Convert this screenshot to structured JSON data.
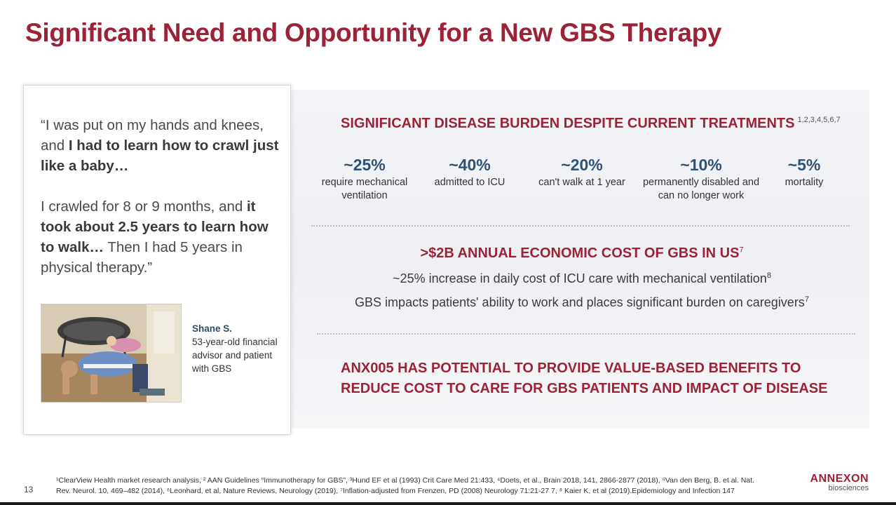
{
  "title": "Significant Need and Opportunity for a New GBS Therapy",
  "quote": {
    "part1_plain": "“I was put on my hands and knees, and ",
    "part1_bold": "I had to learn how to crawl just like a baby…",
    "part2_plain": "I crawled for 8 or 9 months, and ",
    "part2_bold": "it took about 2.5 years to learn how to walk…",
    "part2_end": " Then I had 5 years in physical therapy.”"
  },
  "patient": {
    "name": "Shane S.",
    "description": "53-year-old financial advisor and patient with GBS"
  },
  "burden": {
    "heading": "SIGNIFICANT DISEASE BURDEN DESPITE CURRENT TREATMENTS",
    "refs": "1,2,3,4,5,6,7",
    "stats": [
      {
        "value": "~25%",
        "label": "require mechanical ventilation"
      },
      {
        "value": "~40%",
        "label": "admitted to ICU"
      },
      {
        "value": "~20%",
        "label": "can't walk at 1 year"
      },
      {
        "value": "~10%",
        "label": "permanently disabled and can no longer work"
      },
      {
        "value": "~5%",
        "label": "mortality"
      }
    ]
  },
  "economic": {
    "heading": ">$2B ANNUAL ECONOMIC COST OF GBS IN US",
    "heading_ref": "7",
    "line1": "~25% increase in daily cost of ICU care with mechanical ventilation",
    "line1_ref": "8",
    "line2": "GBS impacts patients' ability to work and places significant burden on caregivers",
    "line2_ref": "7"
  },
  "potential": {
    "line1": "ANX005 HAS POTENTIAL TO PROVIDE VALUE-BASED BENEFITS TO",
    "line2": "REDUCE COST TO CARE FOR GBS PATIENTS AND IMPACT OF DISEASE"
  },
  "footnote": {
    "line1": "¹ClearView Health market research analysis, ² AAN Guidelines “Immunotherapy for GBS”, ³Hund EF et al (1993) Crit Care Med 21:433, ⁴Doets, et al., Brain 2018, 141, 2866-2877 (2018), ⁵Van den Berg, B. et al. Nat.",
    "line2": "Rev. Neurol. 10, 469–482 (2014), ⁶Leonhard, et al, Nature Reviews, Neurology (2019), ⁷Inflation-adjusted from Frenzen, PD (2008) Neurology 71:21-27 7, ⁸ Kaier K, et al  (2019).Epidemiology and Infection 147"
  },
  "page_number": "13",
  "logo": {
    "brand": "ANNEXON",
    "sub": "biosciences"
  },
  "colors": {
    "accent": "#9b2335",
    "stat_blue": "#2f5173",
    "panel": "#f1f2f5"
  }
}
